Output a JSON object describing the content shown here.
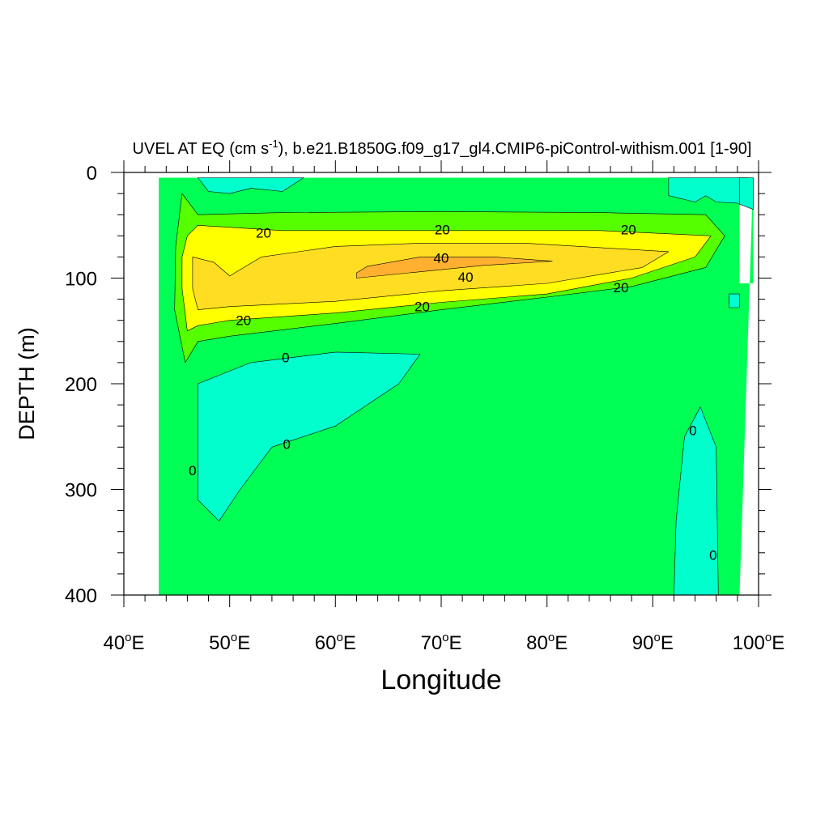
{
  "chart_data": {
    "type": "contour",
    "title": "UVEL AT EQ (cm s",
    "title_sup": "-1",
    "title_rest": "), b.e21.B1850G.f09_g17_gl4.CMIP6-piControl-withism.001 [1-90]",
    "xlabel": "Longitude",
    "ylabel": "DEPTH (m)",
    "xlim": [
      40,
      100
    ],
    "ylim": [
      0,
      400
    ],
    "y_inverted": true,
    "x_major_ticks": [
      40,
      50,
      60,
      70,
      80,
      90,
      100
    ],
    "x_tick_labels": [
      {
        "num": "40",
        "deg": "o",
        "hem": "E"
      },
      {
        "num": "50",
        "deg": "o",
        "hem": "E"
      },
      {
        "num": "60",
        "deg": "o",
        "hem": "E"
      },
      {
        "num": "70",
        "deg": "o",
        "hem": "E"
      },
      {
        "num": "80",
        "deg": "o",
        "hem": "E"
      },
      {
        "num": "90",
        "deg": "o",
        "hem": "E"
      },
      {
        "num": "100",
        "deg": "o",
        "hem": "E"
      }
    ],
    "y_major_ticks": [
      0,
      100,
      200,
      300,
      400
    ],
    "y_tick_labels": [
      "0",
      "100",
      "200",
      "300",
      "400"
    ],
    "contour_levels": [
      0,
      10,
      20,
      30,
      40
    ],
    "fill_colors": {
      "negative": "#00ffcc",
      "0_to_10": "#00ff55",
      "10_to_20": "#55ff00",
      "20_to_30": "#ffff00",
      "30_to_40": "#ffdd22",
      "above_40": "#ffb030"
    },
    "regions": [
      {
        "level": "0_to_10",
        "pts": [
          [
            43.3,
            5
          ],
          [
            98.2,
            5
          ],
          [
            98.2,
            105
          ],
          [
            99.5,
            105
          ],
          [
            99.5,
            0
          ],
          [
            98.2,
            400
          ],
          [
            43.3,
            400
          ]
        ]
      },
      {
        "level": "negative",
        "pts": [
          [
            47,
            5
          ],
          [
            57,
            5
          ],
          [
            55,
            18
          ],
          [
            52,
            15
          ],
          [
            50,
            20
          ],
          [
            48,
            18
          ]
        ]
      },
      {
        "level": "negative",
        "pts": [
          [
            91.5,
            5
          ],
          [
            99,
            5
          ],
          [
            99.5,
            30
          ],
          [
            96,
            28
          ],
          [
            95,
            22
          ],
          [
            94,
            28
          ],
          [
            91.5,
            22
          ]
        ]
      },
      {
        "level": "negative",
        "pts": [
          [
            98.2,
            5
          ],
          [
            99.5,
            5
          ],
          [
            99.5,
            35
          ],
          [
            98.2,
            30
          ]
        ]
      },
      {
        "level": "negative",
        "pts": [
          [
            47,
            200
          ],
          [
            52,
            180
          ],
          [
            60,
            170
          ],
          [
            68,
            172
          ],
          [
            66,
            200
          ],
          [
            60,
            240
          ],
          [
            54,
            260
          ],
          [
            51,
            300
          ],
          [
            49,
            330
          ],
          [
            47,
            310
          ]
        ]
      },
      {
        "level": "negative",
        "pts": [
          [
            93,
            250
          ],
          [
            94.5,
            222
          ],
          [
            96,
            260
          ],
          [
            96.2,
            400
          ],
          [
            92,
            400
          ],
          [
            92.2,
            330
          ]
        ]
      },
      {
        "level": "negative",
        "pts": [
          [
            97.2,
            115
          ],
          [
            98.2,
            115
          ],
          [
            98.2,
            128
          ],
          [
            97.2,
            128
          ]
        ]
      },
      {
        "level": "10_to_20",
        "pts": [
          [
            45.5,
            20
          ],
          [
            47,
            40
          ],
          [
            55,
            38
          ],
          [
            70,
            37
          ],
          [
            85,
            38
          ],
          [
            95,
            40
          ],
          [
            96.8,
            60
          ],
          [
            95,
            90
          ],
          [
            88,
            108
          ],
          [
            80,
            118
          ],
          [
            70,
            130
          ],
          [
            60,
            143
          ],
          [
            50,
            155
          ],
          [
            47,
            160
          ],
          [
            45.8,
            180
          ],
          [
            44.8,
            130
          ],
          [
            44.9,
            70
          ]
        ]
      },
      {
        "level": "20_to_30",
        "pts": [
          [
            46,
            60
          ],
          [
            47,
            50
          ],
          [
            55,
            55
          ],
          [
            70,
            55
          ],
          [
            85,
            55
          ],
          [
            95.5,
            60
          ],
          [
            94,
            80
          ],
          [
            88,
            100
          ],
          [
            80,
            115
          ],
          [
            70,
            123
          ],
          [
            60,
            133
          ],
          [
            50,
            140
          ],
          [
            47,
            145
          ],
          [
            46,
            150
          ],
          [
            45.5,
            110
          ],
          [
            45.5,
            80
          ]
        ]
      },
      {
        "level": "30_to_40",
        "pts": [
          [
            46.5,
            80
          ],
          [
            48.5,
            85
          ],
          [
            50,
            98
          ],
          [
            53,
            80
          ],
          [
            60,
            70
          ],
          [
            68,
            67
          ],
          [
            78,
            67
          ],
          [
            91.5,
            75
          ],
          [
            89,
            90
          ],
          [
            80,
            105
          ],
          [
            70,
            112
          ],
          [
            60,
            122
          ],
          [
            50,
            127
          ],
          [
            47,
            130
          ],
          [
            46.5,
            110
          ]
        ]
      },
      {
        "level": "above_40",
        "pts": [
          [
            62,
            95
          ],
          [
            63,
            89
          ],
          [
            68,
            80
          ],
          [
            75,
            80
          ],
          [
            80.5,
            84
          ],
          [
            74,
            88
          ],
          [
            67,
            95
          ],
          [
            62,
            100
          ]
        ]
      }
    ],
    "contour_labels": [
      {
        "text": "20",
        "x": 53.2,
        "y": 57
      },
      {
        "text": "20",
        "x": 70.1,
        "y": 54
      },
      {
        "text": "20",
        "x": 87.7,
        "y": 54
      },
      {
        "text": "40",
        "x": 70.0,
        "y": 81
      },
      {
        "text": "40",
        "x": 72.3,
        "y": 99
      },
      {
        "text": "20",
        "x": 87.0,
        "y": 109
      },
      {
        "text": "20",
        "x": 68.2,
        "y": 127
      },
      {
        "text": "20",
        "x": 51.3,
        "y": 140
      },
      {
        "text": "0",
        "x": 55.3,
        "y": 175
      },
      {
        "text": "0",
        "x": 55.4,
        "y": 257
      },
      {
        "text": "0",
        "x": 46.5,
        "y": 282
      },
      {
        "text": "0",
        "x": 93.8,
        "y": 244
      },
      {
        "text": "0",
        "x": 95.7,
        "y": 362
      }
    ]
  }
}
